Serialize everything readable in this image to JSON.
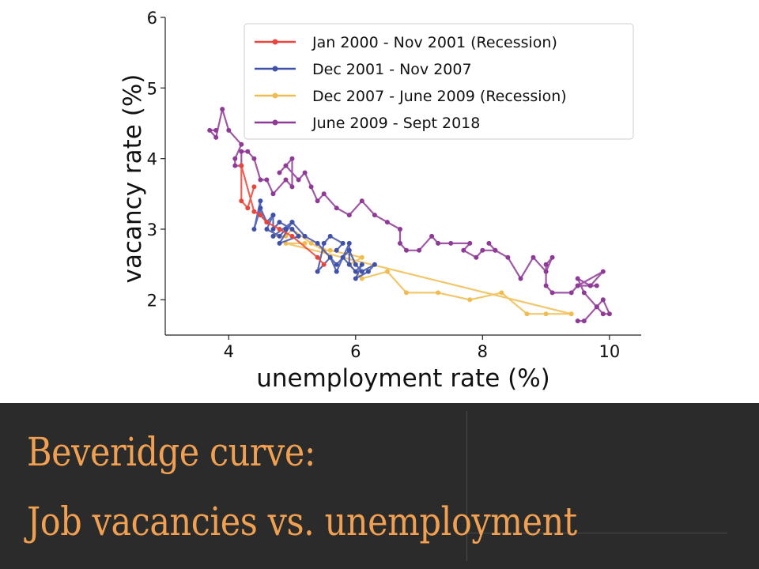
{
  "slide": {
    "title_line_1": "Beveridge curve:",
    "title_line_2": "Job vacancies vs. unemployment",
    "title_color": "#f0a050",
    "band_color": "#2b2b2b"
  },
  "chart_data": {
    "type": "line",
    "title": "",
    "xlabel": "unemployment rate (%)",
    "ylabel": "vacancy rate (%)",
    "xlim": [
      3,
      10.5
    ],
    "ylim": [
      1.5,
      6
    ],
    "xticks": [
      4,
      6,
      8,
      10
    ],
    "yticks": [
      2,
      3,
      4,
      5,
      6
    ],
    "grid": false,
    "legend_position": "upper-right",
    "series": [
      {
        "name": "Jan 2000 - Nov 2001 (Recession)",
        "color": "#e8463c",
        "points": [
          [
            4.4,
            3.6
          ],
          [
            4.3,
            3.3
          ],
          [
            4.2,
            3.4
          ],
          [
            4.2,
            3.9
          ],
          [
            4.4,
            3.25
          ],
          [
            4.5,
            3.2
          ],
          [
            4.6,
            3.1
          ],
          [
            4.8,
            3.0
          ],
          [
            5.0,
            2.9
          ],
          [
            5.4,
            2.6
          ],
          [
            5.5,
            2.5
          ]
        ]
      },
      {
        "name": "Dec 2001 - Nov 2007",
        "color": "#3f51a8",
        "points": [
          [
            5.7,
            2.7
          ],
          [
            5.8,
            2.8
          ],
          [
            5.6,
            2.9
          ],
          [
            5.5,
            2.8
          ],
          [
            5.4,
            2.4
          ],
          [
            5.6,
            2.6
          ],
          [
            5.7,
            2.4
          ],
          [
            5.8,
            2.6
          ],
          [
            5.9,
            2.5
          ],
          [
            5.9,
            2.8
          ],
          [
            5.8,
            2.6
          ],
          [
            6.0,
            2.4
          ],
          [
            6.1,
            2.5
          ],
          [
            6.0,
            2.3
          ],
          [
            6.2,
            2.4
          ],
          [
            6.3,
            2.5
          ],
          [
            6.1,
            2.4
          ],
          [
            6.0,
            2.5
          ],
          [
            5.9,
            2.7
          ],
          [
            5.7,
            2.5
          ],
          [
            5.4,
            2.8
          ],
          [
            5.2,
            2.9
          ],
          [
            5.0,
            3.1
          ],
          [
            4.9,
            3.0
          ],
          [
            4.8,
            2.9
          ],
          [
            4.6,
            3.0
          ],
          [
            4.7,
            3.2
          ],
          [
            4.6,
            3.1
          ],
          [
            4.5,
            3.2
          ],
          [
            4.5,
            3.4
          ],
          [
            4.4,
            3.0
          ],
          [
            4.5,
            3.3
          ],
          [
            4.6,
            3.1
          ],
          [
            4.7,
            3.2
          ],
          [
            4.7,
            3.0
          ],
          [
            4.8,
            3.1
          ],
          [
            5.0,
            3.0
          ],
          [
            5.1,
            2.9
          ],
          [
            4.8,
            2.8
          ],
          [
            5.0,
            3.1
          ],
          [
            4.7,
            2.9
          ]
        ]
      },
      {
        "name": "Dec 2007 - June 2009 (Recession)",
        "color": "#f0bc50",
        "points": [
          [
            4.7,
            2.9
          ],
          [
            4.9,
            2.9
          ],
          [
            5.0,
            3.0
          ],
          [
            5.3,
            2.8
          ],
          [
            5.5,
            2.7
          ],
          [
            5.6,
            2.7
          ],
          [
            6.1,
            2.6
          ],
          [
            5.9,
            2.5
          ],
          [
            6.1,
            2.3
          ],
          [
            6.5,
            2.4
          ],
          [
            6.8,
            2.1
          ],
          [
            7.3,
            2.1
          ],
          [
            7.8,
            2.0
          ],
          [
            8.3,
            2.1
          ],
          [
            8.7,
            1.8
          ],
          [
            9.0,
            1.8
          ],
          [
            9.4,
            1.8
          ],
          [
            4.9,
            2.8
          ],
          [
            5.2,
            2.8
          ]
        ]
      },
      {
        "name": "June 2009 - Sept 2018",
        "color": "#8e3a96",
        "points": [
          [
            9.5,
            1.7
          ],
          [
            9.6,
            1.7
          ],
          [
            9.8,
            1.9
          ],
          [
            9.9,
            1.8
          ],
          [
            10.0,
            1.8
          ],
          [
            9.9,
            2.0
          ],
          [
            9.8,
            1.9
          ],
          [
            9.6,
            2.1
          ],
          [
            9.5,
            2.3
          ],
          [
            9.7,
            2.2
          ],
          [
            9.8,
            2.2
          ],
          [
            9.5,
            2.2
          ],
          [
            9.9,
            2.4
          ],
          [
            9.7,
            2.2
          ],
          [
            9.5,
            2.2
          ],
          [
            9.4,
            2.1
          ],
          [
            9.1,
            2.1
          ],
          [
            9.0,
            2.2
          ],
          [
            9.0,
            2.5
          ],
          [
            9.1,
            2.6
          ],
          [
            9.0,
            2.4
          ],
          [
            8.8,
            2.6
          ],
          [
            8.6,
            2.3
          ],
          [
            8.4,
            2.6
          ],
          [
            8.2,
            2.7
          ],
          [
            8.1,
            2.8
          ],
          [
            8.2,
            2.7
          ],
          [
            8.0,
            2.7
          ],
          [
            7.9,
            2.6
          ],
          [
            7.7,
            2.7
          ],
          [
            7.8,
            2.8
          ],
          [
            7.5,
            2.8
          ],
          [
            7.3,
            2.8
          ],
          [
            7.2,
            2.9
          ],
          [
            7.0,
            2.7
          ],
          [
            6.8,
            2.7
          ],
          [
            6.7,
            2.8
          ],
          [
            6.7,
            3.0
          ],
          [
            6.5,
            3.1
          ],
          [
            6.3,
            3.2
          ],
          [
            6.1,
            3.4
          ],
          [
            5.9,
            3.2
          ],
          [
            5.7,
            3.3
          ],
          [
            5.5,
            3.5
          ],
          [
            5.4,
            3.4
          ],
          [
            5.3,
            3.6
          ],
          [
            5.2,
            3.8
          ],
          [
            5.1,
            3.7
          ],
          [
            4.9,
            3.9
          ],
          [
            4.8,
            3.8
          ],
          [
            5.0,
            4.0
          ],
          [
            5.0,
            3.6
          ],
          [
            4.9,
            3.7
          ],
          [
            4.7,
            3.5
          ],
          [
            4.6,
            3.7
          ],
          [
            4.5,
            3.7
          ],
          [
            4.4,
            4.0
          ],
          [
            4.3,
            4.1
          ],
          [
            4.2,
            4.1
          ],
          [
            4.2,
            3.9
          ],
          [
            4.1,
            3.9
          ],
          [
            4.1,
            4.0
          ],
          [
            4.2,
            4.2
          ],
          [
            4.0,
            4.4
          ],
          [
            3.9,
            4.7
          ],
          [
            3.8,
            4.3
          ],
          [
            3.7,
            4.4
          ],
          [
            3.8,
            4.4
          ]
        ]
      }
    ]
  }
}
